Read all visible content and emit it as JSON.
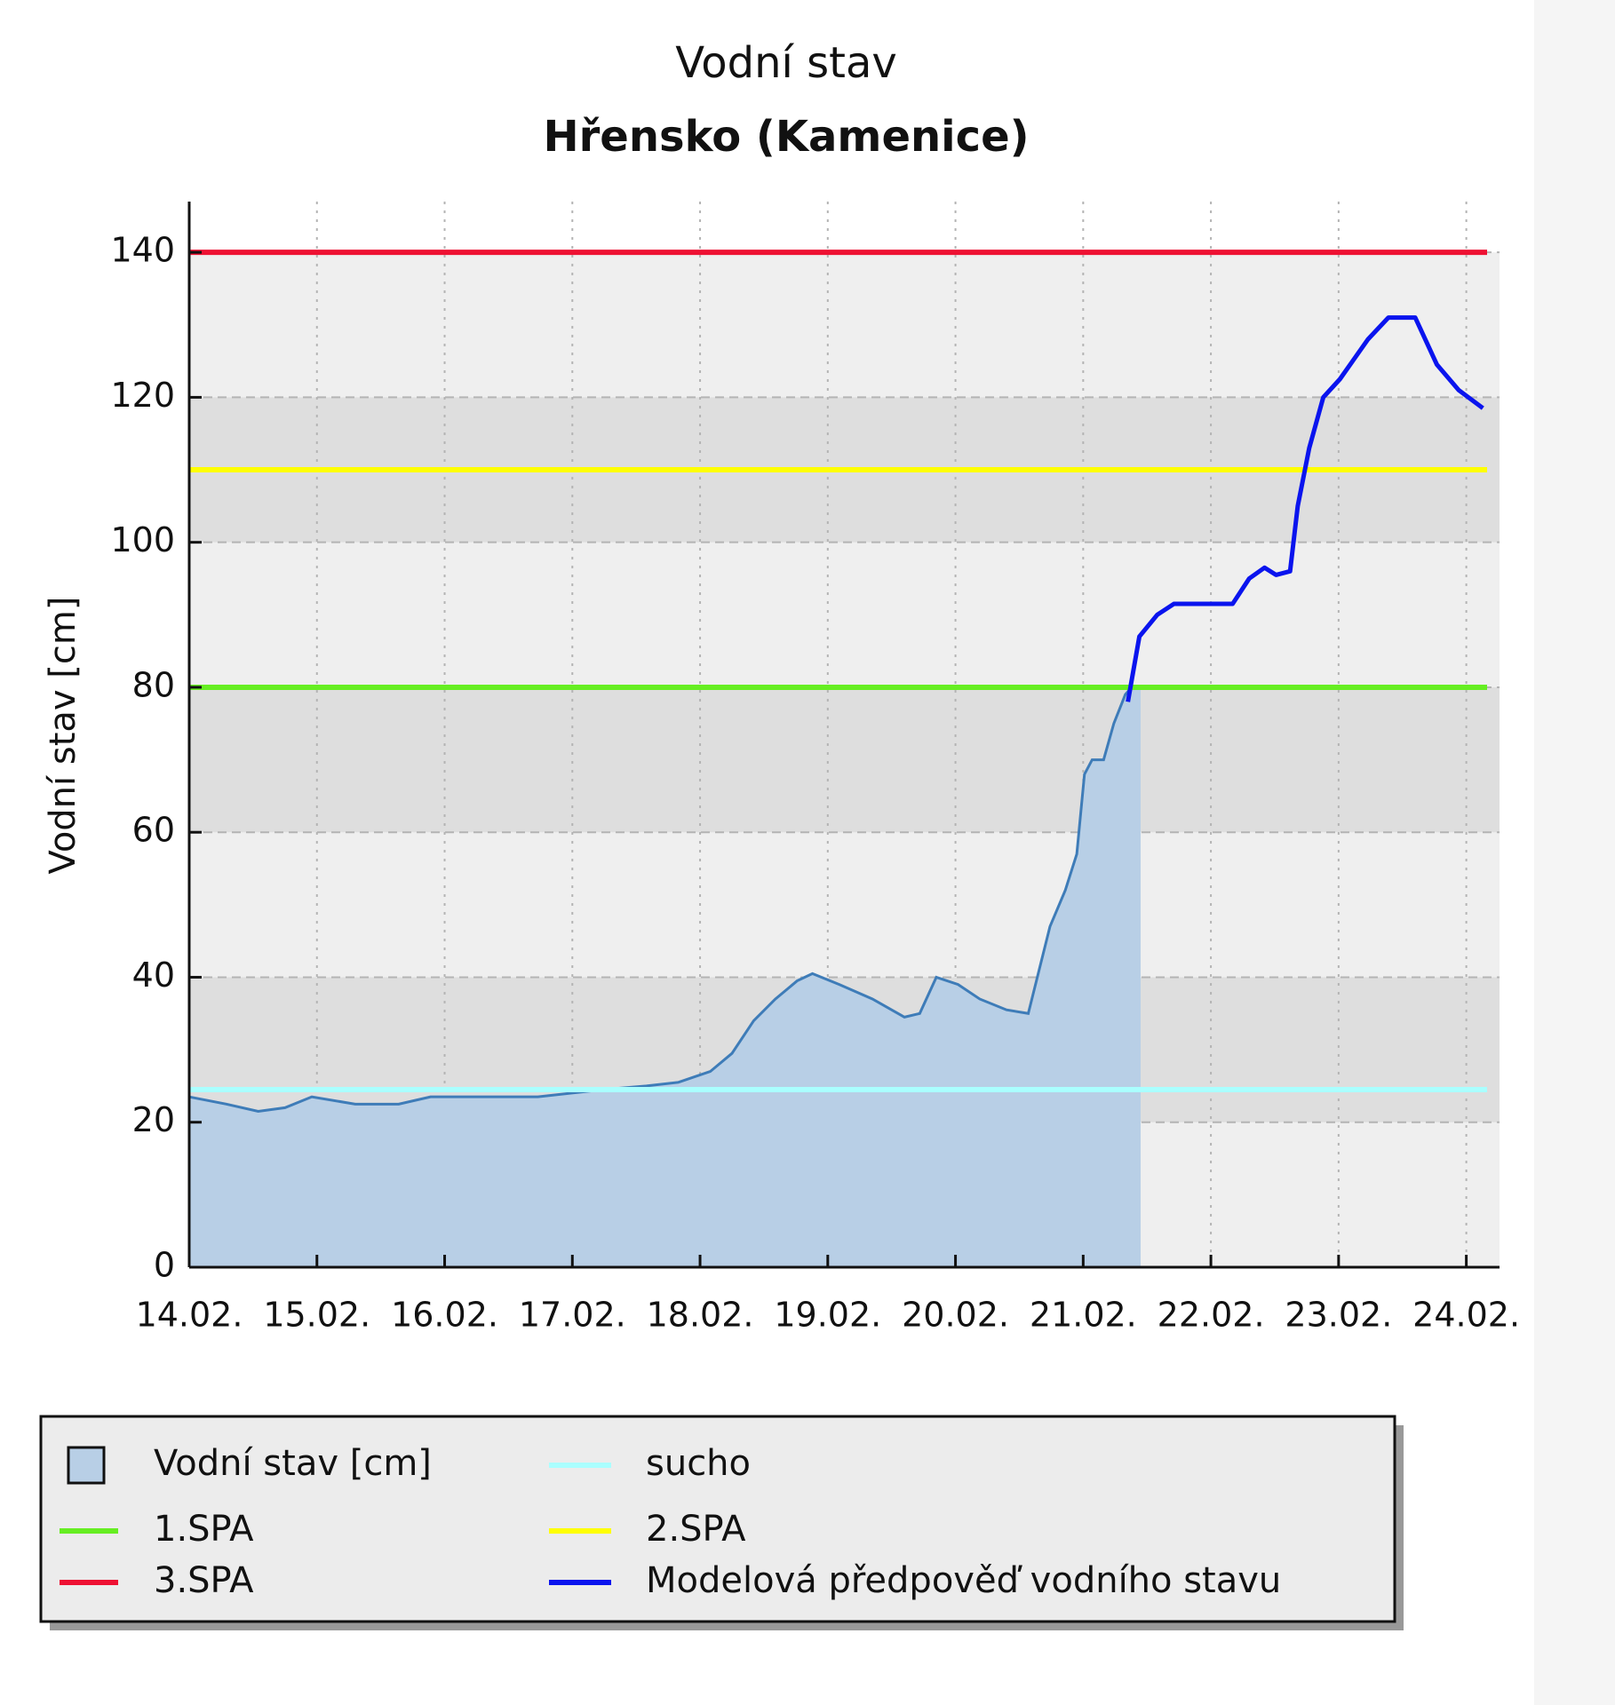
{
  "chart_data": {
    "type": "line",
    "title": "Vodní stav",
    "subtitle": "Hřensko (Kamenice)",
    "y_label": "Vodní stav [cm]",
    "xlim": [
      14,
      24.26
    ],
    "xticks": [
      {
        "value": 14,
        "label": "14.02."
      },
      {
        "value": 15,
        "label": "15.02."
      },
      {
        "value": 16,
        "label": "16.02."
      },
      {
        "value": 17,
        "label": "17.02."
      },
      {
        "value": 18,
        "label": "18.02."
      },
      {
        "value": 19,
        "label": "19.02."
      },
      {
        "value": 20,
        "label": "20.02."
      },
      {
        "value": 21,
        "label": "21.02."
      },
      {
        "value": 22,
        "label": "22.02."
      },
      {
        "value": 23,
        "label": "23.02."
      },
      {
        "value": 24,
        "label": "24.02."
      }
    ],
    "ylim": [
      0,
      147
    ],
    "yticks": [
      0,
      20,
      40,
      60,
      80,
      100,
      120,
      140
    ],
    "grid": true,
    "bands": [
      [
        20,
        40
      ],
      [
        60,
        80
      ],
      [
        100,
        120
      ]
    ],
    "series": [
      {
        "name": "Vodní stav [cm]",
        "style": "area",
        "color": "#b8cfe6",
        "edge": "#3e7cb8",
        "x": [
          14.0,
          14.29,
          14.54,
          14.75,
          14.96,
          15.3,
          15.64,
          15.89,
          16.73,
          17.24,
          17.58,
          17.83,
          18.08,
          18.25,
          18.42,
          18.59,
          18.76,
          18.88,
          19.09,
          19.35,
          19.6,
          19.72,
          19.85,
          20.02,
          20.19,
          20.4,
          20.57,
          20.74,
          20.86,
          20.95,
          21.01,
          21.07,
          21.16,
          21.24,
          21.33,
          21.38,
          21.45
        ],
        "values": [
          23.5,
          22.5,
          21.5,
          22,
          23.5,
          22.5,
          22.5,
          23.5,
          23.5,
          24.5,
          25,
          25.5,
          27,
          29.5,
          34,
          37,
          39.5,
          40.5,
          39,
          37,
          34.5,
          35,
          40,
          39,
          37,
          35.5,
          35,
          47,
          52,
          57,
          68,
          70,
          70,
          75,
          79,
          80,
          80
        ]
      },
      {
        "name": "sucho",
        "style": "hline",
        "color": "#aaffff",
        "values": [
          24.5
        ]
      },
      {
        "name": "1.SPA",
        "style": "hline",
        "color": "#66ee22",
        "values": [
          80
        ]
      },
      {
        "name": "2.SPA",
        "style": "hline",
        "color": "#ffff00",
        "values": [
          110
        ]
      },
      {
        "name": "3.SPA",
        "style": "hline",
        "color": "#ee1133",
        "values": [
          140
        ]
      },
      {
        "name": "Modelová předpověď vodního stavu",
        "style": "line",
        "color": "#0a14ee",
        "x": [
          21.35,
          21.44,
          21.58,
          21.71,
          22.17,
          22.3,
          22.42,
          22.51,
          22.62,
          22.68,
          22.77,
          22.88,
          23.01,
          23.23,
          23.39,
          23.6,
          23.77,
          23.94,
          24.13
        ],
        "values": [
          78,
          87,
          90,
          91.5,
          91.5,
          95,
          96.5,
          95.5,
          96,
          105,
          113,
          120,
          122.5,
          128,
          131,
          131,
          124.5,
          121,
          118.5
        ]
      }
    ]
  }
}
